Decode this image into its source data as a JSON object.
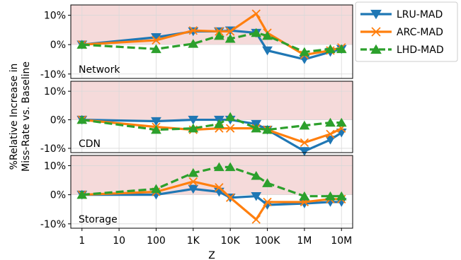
{
  "chart_data": {
    "type": "line",
    "xlabel": "Z",
    "ylabel_lines": [
      "%Relative Increase in",
      "Miss-Rate vs. Baseline"
    ],
    "x_scale": "log",
    "x": [
      1,
      100,
      1000,
      5000,
      10000,
      50000,
      100000,
      1000000,
      5000000,
      10000000
    ],
    "x_ticks": [
      {
        "value": 1,
        "label": "1"
      },
      {
        "value": 10,
        "label": "10"
      },
      {
        "value": 100,
        "label": "100"
      },
      {
        "value": 1000,
        "label": "1K"
      },
      {
        "value": 10000,
        "label": "10K"
      },
      {
        "value": 100000,
        "label": "100K"
      },
      {
        "value": 1000000,
        "label": "1M"
      },
      {
        "value": 10000000,
        "label": "10M"
      }
    ],
    "y_ticks": [
      {
        "value": -10,
        "label": "-10%"
      },
      {
        "value": 0,
        "label": "0%"
      },
      {
        "value": 10,
        "label": "10%"
      }
    ],
    "ylim": [
      -11.5,
      13.5
    ],
    "legend_position": "outside-top-right",
    "grid": true,
    "shaded_region": {
      "from": 0,
      "to": 13.5,
      "color": "#f5dada"
    },
    "legend": [
      {
        "name": "LRU-MAD",
        "color": "#1f77b4",
        "marker": "triangle-down",
        "dash": "solid"
      },
      {
        "name": "ARC-MAD",
        "color": "#ff7f0e",
        "marker": "x",
        "dash": "solid"
      },
      {
        "name": "LHD-MAD",
        "color": "#2ca02c",
        "marker": "triangle-up",
        "dash": "dashed"
      }
    ],
    "panels": [
      {
        "label": "Network",
        "series": [
          {
            "name": "LRU-MAD",
            "values": [
              0,
              2.5,
              4.5,
              4.5,
              4.8,
              4,
              -2,
              -5,
              -2.5,
              -1.5
            ]
          },
          {
            "name": "ARC-MAD",
            "values": [
              0,
              1.5,
              4.8,
              4.5,
              4.5,
              10.5,
              4,
              -3.5,
              -2,
              -1
            ]
          },
          {
            "name": "LHD-MAD",
            "values": [
              0,
              -1.5,
              0.3,
              3,
              2,
              4,
              3,
              -2.5,
              -1.5,
              -1.5
            ]
          }
        ]
      },
      {
        "label": "CDN",
        "series": [
          {
            "name": "LRU-MAD",
            "values": [
              0,
              -0.5,
              0,
              0,
              0,
              -1.5,
              -3.5,
              -11,
              -7,
              -4.5
            ]
          },
          {
            "name": "ARC-MAD",
            "values": [
              0,
              -2.5,
              -3.5,
              -3,
              -3,
              -3,
              -3.5,
              -8,
              -5,
              -3
            ]
          },
          {
            "name": "LHD-MAD",
            "values": [
              0,
              -3.5,
              -3,
              -1.5,
              1,
              -3,
              -3.5,
              -2,
              -1,
              -1
            ]
          }
        ]
      },
      {
        "label": "Storage",
        "series": [
          {
            "name": "LRU-MAD",
            "values": [
              0,
              0,
              2,
              1,
              -1,
              -0.5,
              -3.5,
              -3,
              -2.5,
              -2.5
            ]
          },
          {
            "name": "ARC-MAD",
            "values": [
              0,
              1,
              4.5,
              2.5,
              -1,
              -8.5,
              -2.5,
              -2.5,
              -1.5,
              -1.5
            ]
          },
          {
            "name": "LHD-MAD",
            "values": [
              0,
              2,
              7.5,
              9.5,
              9.5,
              6.5,
              4,
              -0.5,
              -0.5,
              -0.5
            ]
          }
        ]
      }
    ]
  }
}
